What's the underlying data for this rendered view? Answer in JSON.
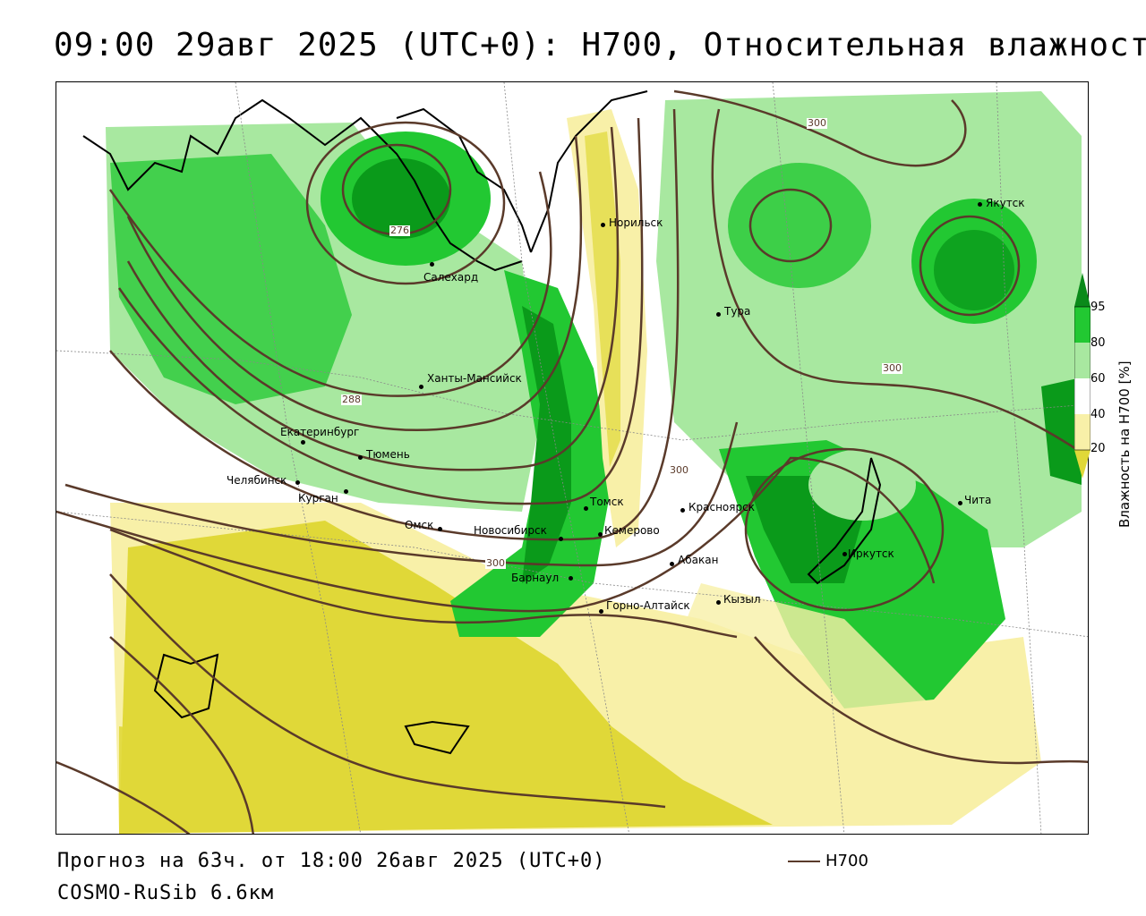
{
  "header": {
    "title": "09:00 29авг 2025 (UTC+0): H700, Относительная влажность"
  },
  "footer": {
    "forecast": "Прогноз на 63ч. от 18:00 26авг 2025 (UTC+0)",
    "model": "COSMO-RuSib 6.6км",
    "contour_legend": "H700"
  },
  "colorbar": {
    "title": "Влажность на H700 [%]",
    "ticks": [
      "95",
      "80",
      "60",
      "40",
      "20"
    ]
  },
  "isolines": [
    "276",
    "288",
    "300",
    "300",
    "300",
    "300"
  ],
  "cities": [
    {
      "name": "Норильск"
    },
    {
      "name": "Салехард"
    },
    {
      "name": "Якутск"
    },
    {
      "name": "Тура"
    },
    {
      "name": "Ханты-Мансийск"
    },
    {
      "name": "Екатеринбург"
    },
    {
      "name": "Тюмень"
    },
    {
      "name": "Челябинск"
    },
    {
      "name": "Курган"
    },
    {
      "name": "Омск"
    },
    {
      "name": "Новосибирск"
    },
    {
      "name": "Томск"
    },
    {
      "name": "Кемерово"
    },
    {
      "name": "Красноярск"
    },
    {
      "name": "Абакан"
    },
    {
      "name": "Барнаул"
    },
    {
      "name": "Горно-Алтайск"
    },
    {
      "name": "Кызыл"
    },
    {
      "name": "Иркутск"
    },
    {
      "name": "Чита"
    }
  ],
  "colors": {
    "dark_green": "#0a9a1a",
    "green": "#22c832",
    "light_green": "#a8e8a0",
    "pale_yellow": "#f8f0a8",
    "yellow": "#e0d838",
    "contour": "#5a3a2a"
  }
}
